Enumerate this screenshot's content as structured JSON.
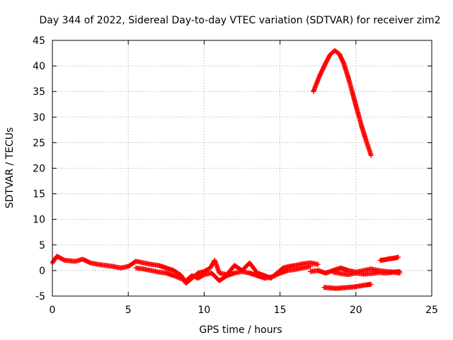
{
  "chart_data": {
    "type": "scatter",
    "title": "Day 344 of 2022, Sidereal Day-to-day VTEC variation (SDTVAR) for receiver zim2",
    "xlabel": "GPS time / hours",
    "ylabel": "SDTVAR / TECUs",
    "xlim": [
      0,
      25
    ],
    "ylim": [
      -5,
      45
    ],
    "xticks": [
      0,
      5,
      10,
      15,
      20,
      25
    ],
    "yticks": [
      -5,
      0,
      5,
      10,
      15,
      20,
      25,
      30,
      35,
      40,
      45
    ],
    "grid": true,
    "marker": "+",
    "color": "#ff0000",
    "series": [
      {
        "name": "arc-upper",
        "x": [
          17.2,
          17.6,
          18.0,
          18.3,
          18.6,
          18.9,
          19.2,
          19.5,
          19.8,
          20.1,
          20.4,
          20.7,
          21.0
        ],
        "y": [
          35.0,
          38.0,
          40.5,
          42.2,
          43.0,
          42.4,
          40.5,
          37.7,
          34.5,
          31.2,
          28.0,
          25.2,
          22.5
        ]
      },
      {
        "name": "band-main",
        "x": [
          0.0,
          0.3,
          0.8,
          1.5,
          2.0,
          2.5,
          3.0,
          3.5,
          4.0,
          4.5,
          5.0,
          5.5,
          6.0,
          6.5,
          7.0,
          7.5,
          8.0,
          8.5,
          8.8,
          9.2,
          9.6,
          10.0,
          10.4,
          10.7,
          11.0,
          11.5,
          12.0,
          12.5,
          13.0,
          13.5,
          14.0,
          14.4,
          14.8,
          15.2,
          15.6,
          16.0,
          16.5,
          17.0,
          17.5
        ],
        "y": [
          1.5,
          2.8,
          2.0,
          1.8,
          2.2,
          1.5,
          1.2,
          1.0,
          0.8,
          0.5,
          0.8,
          1.8,
          1.5,
          1.2,
          1.0,
          0.5,
          0.0,
          -1.0,
          -2.5,
          -1.5,
          -0.5,
          -0.2,
          0.5,
          2.0,
          -0.5,
          -0.8,
          1.0,
          0.0,
          1.5,
          -0.5,
          -1.0,
          -1.5,
          -0.5,
          0.5,
          0.8,
          1.0,
          1.3,
          1.5,
          1.2
        ]
      },
      {
        "name": "band-secondary",
        "x": [
          5.5,
          6.0,
          6.5,
          7.0,
          7.5,
          8.0,
          8.4,
          8.8,
          9.2,
          9.6,
          10.0,
          10.5,
          11.0,
          11.5,
          12.0,
          12.5,
          13.0,
          13.5,
          14.0,
          14.5,
          15.0,
          15.5,
          16.0,
          16.5,
          17.0
        ],
        "y": [
          0.5,
          0.3,
          0.0,
          -0.3,
          -0.5,
          -1.0,
          -1.5,
          -2.0,
          -1.0,
          -1.5,
          -0.8,
          -0.5,
          -2.0,
          -1.0,
          -0.5,
          -0.2,
          -0.5,
          -1.0,
          -1.5,
          -1.2,
          -0.5,
          0.0,
          0.2,
          0.5,
          0.8
        ]
      },
      {
        "name": "band-late",
        "x": [
          17.0,
          17.5,
          18.0,
          18.5,
          19.0,
          19.5,
          20.0,
          20.5,
          21.0,
          21.5,
          22.0,
          22.5,
          22.9
        ],
        "y": [
          -0.2,
          0.0,
          -0.5,
          0.0,
          0.5,
          0.0,
          -0.3,
          0.0,
          0.3,
          0.0,
          -0.2,
          -0.3,
          -0.5
        ]
      },
      {
        "name": "band-late-lower",
        "x": [
          18.5,
          19.0,
          19.5,
          20.0,
          20.5,
          21.0,
          21.5,
          22.0,
          22.5,
          22.9
        ],
        "y": [
          -0.3,
          -0.6,
          -0.8,
          -0.5,
          -0.7,
          -0.6,
          -0.4,
          -0.5,
          -0.3,
          -0.2
        ]
      },
      {
        "name": "band-bottom",
        "x": [
          17.9,
          18.3,
          18.7,
          19.1,
          19.5,
          19.9,
          20.3,
          20.7,
          21.0
        ],
        "y": [
          -3.3,
          -3.4,
          -3.5,
          -3.4,
          -3.3,
          -3.2,
          -3.0,
          -2.8,
          -2.7
        ]
      },
      {
        "name": "segment-right",
        "x": [
          21.6,
          21.9,
          22.2,
          22.5,
          22.8
        ],
        "y": [
          2.0,
          2.1,
          2.3,
          2.4,
          2.6
        ]
      }
    ]
  }
}
